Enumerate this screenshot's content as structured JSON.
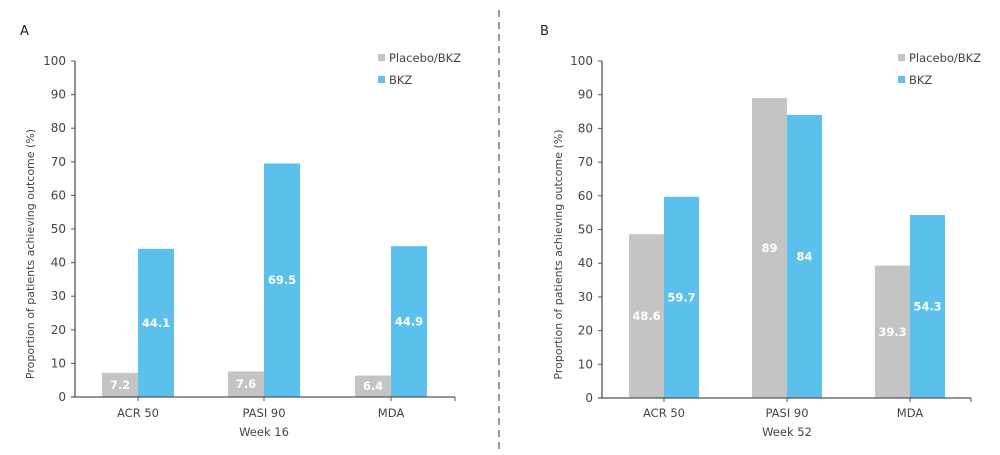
{
  "colors": {
    "placebo": "#c4c4c4",
    "bkz": "#5bc1ec",
    "axis": "#555555",
    "divider": "#555555"
  },
  "chart_data": [
    {
      "type": "bar",
      "panel": "A",
      "title": "",
      "categories": [
        "ACR 50",
        "PASI 90",
        "MDA"
      ],
      "xlabel": "Week 16",
      "ylabel": "Proportion of patients achieving outcome (%)",
      "ylim": [
        0,
        100
      ],
      "yticks": [
        0,
        10,
        20,
        30,
        40,
        50,
        60,
        70,
        80,
        90,
        100
      ],
      "grid": false,
      "legend_position": "top-right",
      "series": [
        {
          "name": "Placebo/BKZ",
          "values": [
            7.2,
            7.6,
            6.4
          ],
          "labels": [
            "7.2",
            "7.6",
            "6.4"
          ]
        },
        {
          "name": "BKZ",
          "values": [
            44.1,
            69.5,
            44.9
          ],
          "labels": [
            "44.1",
            "69.5",
            "44.9"
          ]
        }
      ]
    },
    {
      "type": "bar",
      "panel": "B",
      "title": "",
      "categories": [
        "ACR 50",
        "PASI 90",
        "MDA"
      ],
      "xlabel": "Week 52",
      "ylabel": "Proportion of patients achieving outcome (%)",
      "ylim": [
        0,
        100
      ],
      "yticks": [
        0,
        10,
        20,
        30,
        40,
        50,
        60,
        70,
        80,
        90,
        100
      ],
      "grid": false,
      "legend_position": "top-right",
      "series": [
        {
          "name": "Placebo/BKZ",
          "values": [
            48.6,
            89,
            39.3
          ],
          "labels": [
            "48.6",
            "89",
            "39.3"
          ]
        },
        {
          "name": "BKZ",
          "values": [
            59.7,
            84,
            54.3
          ],
          "labels": [
            "59.7",
            "84",
            "54.3"
          ]
        }
      ]
    }
  ]
}
